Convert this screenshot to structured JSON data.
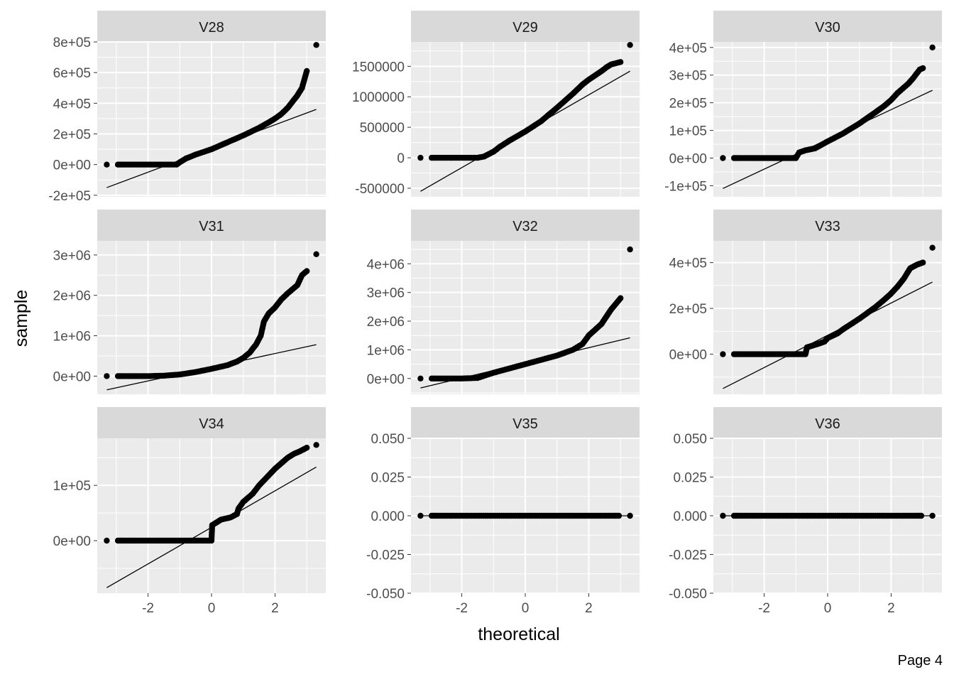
{
  "page_label": "Page 4",
  "colors": {
    "panel_background": "#ebebeb",
    "strip_background": "#d9d9d9",
    "grid": "#ffffff",
    "points": "#000000",
    "reference_line": "#000000",
    "tick_text": "#4d4d4d"
  },
  "chart_data": {
    "type": "scatter",
    "kind": "facetted normal Q-Q plot",
    "xlabel": "theoretical",
    "ylabel": "sample",
    "xlim": [
      -3.6,
      3.6
    ],
    "x_ticks": [
      -2,
      0,
      2
    ],
    "x_tick_labels": [
      "-2",
      "0",
      "2"
    ],
    "grid": true,
    "panels": [
      {
        "name": "V28",
        "ylim": [
          -210000,
          800000
        ],
        "y_ticks": [
          -200000,
          0,
          200000,
          400000,
          600000,
          800000
        ],
        "y_tick_labels": [
          "-2e+05",
          "0e+00",
          "2e+05",
          "4e+05",
          "6e+05",
          "8e+05"
        ],
        "reference_line": {
          "x": [
            -3.3,
            3.3
          ],
          "y": [
            -150000,
            360000
          ]
        },
        "points": {
          "x": [
            -3.3,
            -2.95,
            -2.8,
            -2.5,
            -2.0,
            -1.5,
            -1.1,
            -1.0,
            -0.8,
            -0.5,
            0.0,
            0.5,
            1.0,
            1.5,
            1.8,
            2.0,
            2.2,
            2.4,
            2.55,
            2.7,
            2.85,
            3.0,
            3.3
          ],
          "y": [
            0,
            0,
            0,
            0,
            0,
            0,
            0,
            15000,
            40000,
            65000,
            100000,
            145000,
            190000,
            240000,
            275000,
            300000,
            330000,
            370000,
            410000,
            450000,
            500000,
            610000,
            780000
          ]
        }
      },
      {
        "name": "V29",
        "ylim": [
          -640000,
          1900000
        ],
        "y_ticks": [
          -500000,
          0,
          500000,
          1000000,
          1500000
        ],
        "y_tick_labels": [
          "-500000",
          "0",
          "500000",
          "1000000",
          "1500000"
        ],
        "reference_line": {
          "x": [
            -3.3,
            3.3
          ],
          "y": [
            -550000,
            1420000
          ]
        },
        "points": {
          "x": [
            -3.3,
            -2.95,
            -2.8,
            -2.5,
            -2.0,
            -1.5,
            -1.3,
            -1.0,
            -0.8,
            -0.5,
            0.0,
            0.5,
            1.0,
            1.5,
            1.8,
            2.0,
            2.2,
            2.4,
            2.55,
            2.7,
            3.0,
            3.3
          ],
          "y": [
            0,
            0,
            0,
            0,
            0,
            0,
            20000,
            100000,
            180000,
            280000,
            430000,
            600000,
            820000,
            1050000,
            1200000,
            1280000,
            1350000,
            1420000,
            1480000,
            1530000,
            1570000,
            1850000
          ]
        }
      },
      {
        "name": "V30",
        "ylim": [
          -140000,
          420000
        ],
        "y_ticks": [
          -100000,
          0,
          100000,
          200000,
          300000,
          400000
        ],
        "y_tick_labels": [
          "-1e+05",
          "0e+00",
          "1e+05",
          "2e+05",
          "3e+05",
          "4e+05"
        ],
        "reference_line": {
          "x": [
            -3.3,
            3.3
          ],
          "y": [
            -110000,
            245000
          ]
        },
        "points": {
          "x": [
            -3.3,
            -2.95,
            -2.8,
            -2.5,
            -2.0,
            -1.5,
            -1.0,
            -0.9,
            -0.7,
            -0.4,
            0.0,
            0.5,
            1.0,
            1.5,
            1.8,
            2.0,
            2.2,
            2.4,
            2.55,
            2.7,
            2.9,
            3.0,
            3.3
          ],
          "y": [
            0,
            0,
            0,
            0,
            0,
            0,
            0,
            20000,
            28000,
            35000,
            60000,
            90000,
            125000,
            165000,
            190000,
            210000,
            235000,
            255000,
            270000,
            290000,
            320000,
            325000,
            400000
          ]
        }
      },
      {
        "name": "V31",
        "ylim": [
          -450000,
          3350000
        ],
        "y_ticks": [
          0,
          1000000,
          2000000,
          3000000
        ],
        "y_tick_labels": [
          "0e+00",
          "1e+06",
          "2e+06",
          "3e+06"
        ],
        "reference_line": {
          "x": [
            -3.3,
            3.3
          ],
          "y": [
            -340000,
            780000
          ]
        },
        "points": {
          "x": [
            -3.3,
            -2.95,
            -2.8,
            -2.5,
            -2.0,
            -1.5,
            -1.0,
            -0.5,
            0.0,
            0.5,
            0.8,
            1.0,
            1.2,
            1.4,
            1.55,
            1.65,
            1.8,
            2.0,
            2.2,
            2.4,
            2.55,
            2.7,
            2.85,
            3.0,
            3.3
          ],
          "y": [
            0,
            0,
            0,
            0,
            0,
            10000,
            40000,
            100000,
            180000,
            270000,
            360000,
            450000,
            580000,
            780000,
            1000000,
            1350000,
            1550000,
            1700000,
            1900000,
            2050000,
            2150000,
            2250000,
            2500000,
            2600000,
            3020000
          ]
        }
      },
      {
        "name": "V32",
        "ylim": [
          -550000,
          4800000
        ],
        "y_ticks": [
          0,
          1000000,
          2000000,
          3000000,
          4000000
        ],
        "y_tick_labels": [
          "0e+00",
          "1e+06",
          "2e+06",
          "3e+06",
          "4e+06"
        ],
        "reference_line": {
          "x": [
            -3.3,
            3.3
          ],
          "y": [
            -330000,
            1420000
          ]
        },
        "points": {
          "x": [
            -3.3,
            -2.95,
            -2.8,
            -2.5,
            -2.0,
            -1.5,
            -1.0,
            -0.5,
            0.0,
            0.5,
            1.0,
            1.5,
            1.8,
            2.0,
            2.2,
            2.4,
            2.55,
            2.7,
            2.85,
            3.0,
            3.3
          ],
          "y": [
            0,
            0,
            0,
            0,
            0,
            20000,
            200000,
            350000,
            500000,
            650000,
            800000,
            1000000,
            1200000,
            1500000,
            1700000,
            1900000,
            2150000,
            2400000,
            2600000,
            2800000,
            4500000
          ]
        }
      },
      {
        "name": "V33",
        "ylim": [
          -175000,
          495000
        ],
        "y_ticks": [
          0,
          200000,
          400000
        ],
        "y_tick_labels": [
          "0e+00",
          "2e+05",
          "4e+05"
        ],
        "reference_line": {
          "x": [
            -3.3,
            3.3
          ],
          "y": [
            -150000,
            315000
          ]
        },
        "points": {
          "x": [
            -3.3,
            -2.95,
            -2.8,
            -2.5,
            -2.0,
            -1.5,
            -1.0,
            -0.7,
            -0.65,
            -0.3,
            -0.1,
            0.0,
            0.3,
            0.5,
            1.0,
            1.5,
            1.8,
            2.0,
            2.2,
            2.4,
            2.6,
            2.8,
            3.0,
            3.3
          ],
          "y": [
            0,
            0,
            0,
            0,
            0,
            0,
            0,
            0,
            30000,
            45000,
            55000,
            70000,
            90000,
            110000,
            155000,
            205000,
            240000,
            265000,
            295000,
            330000,
            375000,
            390000,
            400000,
            465000
          ]
        }
      },
      {
        "name": "V34",
        "ylim": [
          -95000,
          185000
        ],
        "y_ticks": [
          0,
          100000
        ],
        "y_tick_labels": [
          "0e+00",
          "1e+05"
        ],
        "reference_line": {
          "x": [
            -3.3,
            3.3
          ],
          "y": [
            -85000,
            133000
          ]
        },
        "points": {
          "x": [
            -3.3,
            -2.95,
            -2.8,
            -2.5,
            -2.0,
            -1.5,
            -1.0,
            -0.5,
            0.0,
            0.02,
            0.3,
            0.6,
            0.8,
            0.85,
            1.0,
            1.3,
            1.5,
            1.8,
            2.0,
            2.2,
            2.4,
            2.6,
            2.8,
            3.0,
            3.3
          ],
          "y": [
            0,
            0,
            0,
            0,
            0,
            0,
            0,
            0,
            0,
            28000,
            38000,
            42000,
            48000,
            58000,
            70000,
            85000,
            100000,
            118000,
            130000,
            140000,
            150000,
            157000,
            162000,
            168000,
            173000
          ]
        }
      },
      {
        "name": "V35",
        "ylim": [
          -0.05,
          0.05
        ],
        "y_ticks": [
          -0.05,
          -0.025,
          0,
          0.025,
          0.05
        ],
        "y_tick_labels": [
          "-0.050",
          "-0.025",
          "0.000",
          "0.025",
          "0.050"
        ],
        "reference_line": {
          "x": [
            -3.3,
            3.3
          ],
          "y": [
            0,
            0
          ]
        },
        "points": {
          "x": [
            -3.3,
            -2.95,
            -2.8,
            -2.5,
            -2.0,
            -1.5,
            -1.0,
            -0.5,
            0.0,
            0.5,
            1.0,
            1.5,
            2.0,
            2.5,
            2.8,
            2.95,
            3.3
          ],
          "y": [
            0,
            0,
            0,
            0,
            0,
            0,
            0,
            0,
            0,
            0,
            0,
            0,
            0,
            0,
            0,
            0,
            0
          ]
        }
      },
      {
        "name": "V36",
        "ylim": [
          -0.05,
          0.05
        ],
        "y_ticks": [
          -0.05,
          -0.025,
          0,
          0.025,
          0.05
        ],
        "y_tick_labels": [
          "-0.050",
          "-0.025",
          "0.000",
          "0.025",
          "0.050"
        ],
        "reference_line": {
          "x": [
            -3.3,
            3.3
          ],
          "y": [
            0,
            0
          ]
        },
        "points": {
          "x": [
            -3.3,
            -2.95,
            -2.8,
            -2.5,
            -2.0,
            -1.5,
            -1.0,
            -0.5,
            0.0,
            0.5,
            1.0,
            1.5,
            2.0,
            2.5,
            2.8,
            2.95,
            3.3
          ],
          "y": [
            0,
            0,
            0,
            0,
            0,
            0,
            0,
            0,
            0,
            0,
            0,
            0,
            0,
            0,
            0,
            0,
            0
          ]
        }
      }
    ]
  }
}
